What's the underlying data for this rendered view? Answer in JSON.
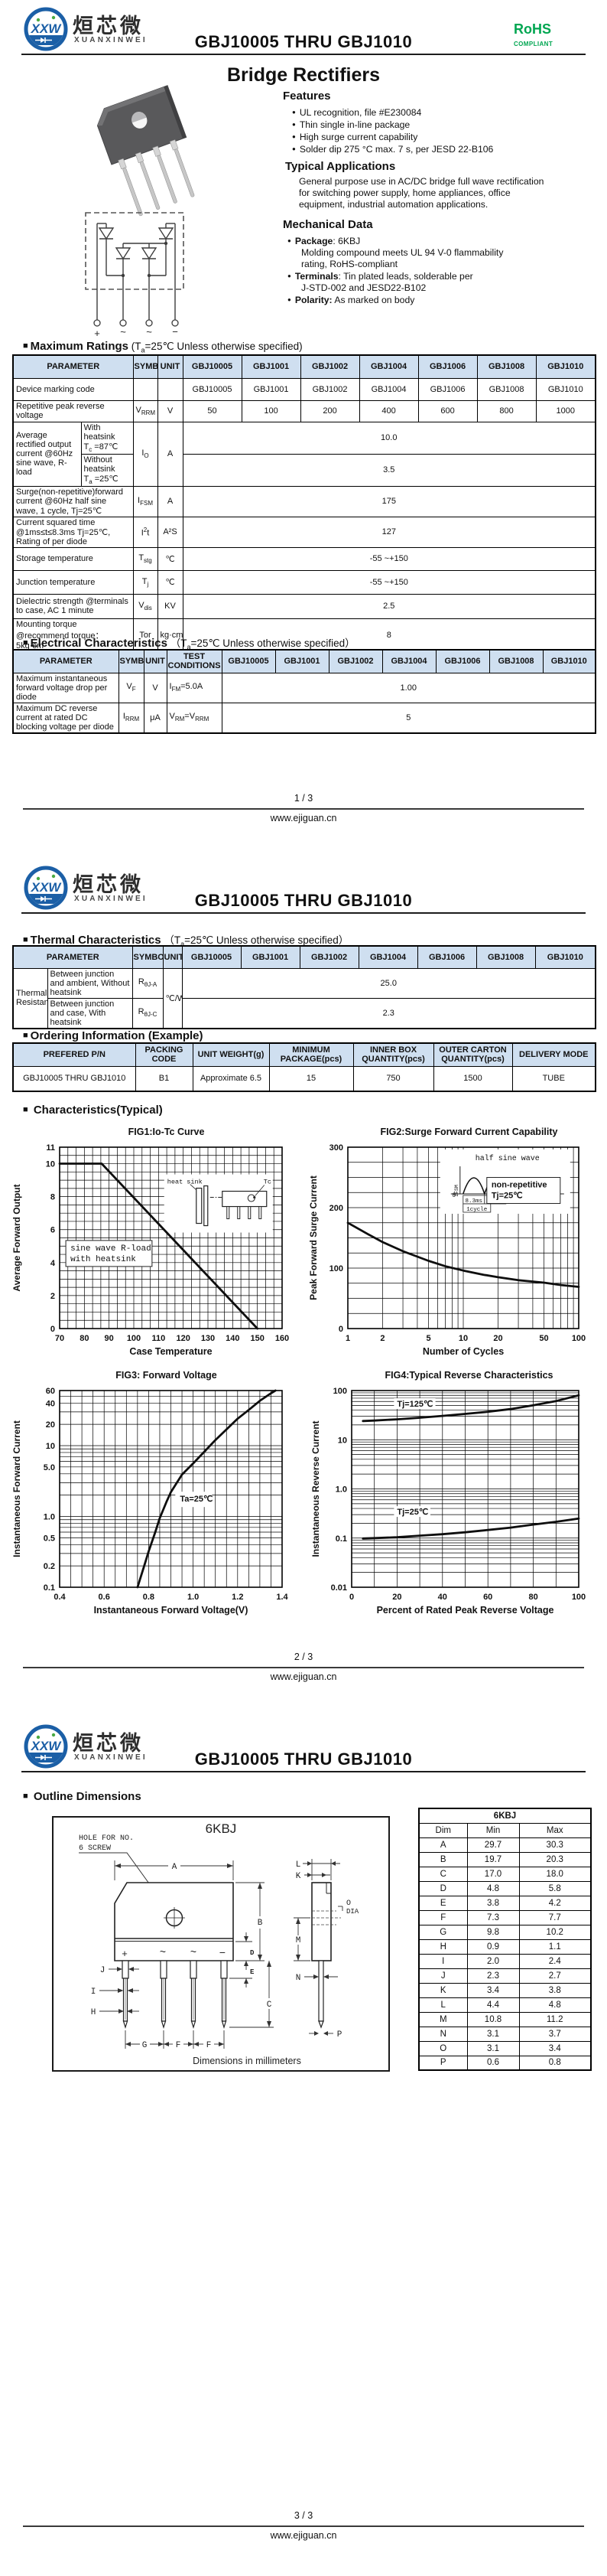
{
  "ui": {
    "square": "■",
    "bullet": "●"
  },
  "brand": {
    "logo_cn": "烜芯微",
    "logo_en": "XUANXINWEI",
    "logo_abbr": "XXW",
    "rohs": "RoHS",
    "rohs_sub": "COMPLIANT"
  },
  "header": {
    "title": "GBJ10005 THRU GBJ1010"
  },
  "footer": {
    "url": "www.ejiguan.cn",
    "pages": [
      "1 / 3",
      "2 / 3",
      "3 / 3"
    ]
  },
  "page1": {
    "product_heading": "Bridge Rectifiers",
    "features": {
      "title": "Features",
      "items": [
        "UL recognition, file #E230084",
        "Thin single in-line package",
        "High surge current capability",
        "Solder dip 275 °C max. 7 s, per JESD 22-B106"
      ]
    },
    "apps": {
      "title": "Typical Applications",
      "lines": [
        "General purpose use in AC/DC bridge full wave rectification",
        "for switching power supply, home appliances, office",
        "equipment, industrial automation applications."
      ]
    },
    "mech": {
      "title": "Mechanical Data",
      "i0b": "Package",
      "i0r": ": 6KBJ",
      "i0c1": "Molding compound meets UL 94 V-0 flammability",
      "i0c2": "rating, RoHS-compliant",
      "i1b": "Terminals",
      "i1r": ": Tin plated leads, solderable  per",
      "i1c1": "J-STD-002 and JESD22-B102",
      "i2b": "Polarity:",
      "i2r": " As marked on body"
    },
    "schematic_terminals": [
      "+",
      "~",
      "~",
      "−"
    ],
    "max_ratings": {
      "heading": {
        "bold": "Maximum Ratings",
        "pre": "(T",
        "sub": "a",
        "post": "=25℃ Unless otherwise specified)"
      },
      "headers": [
        "PARAMETER",
        "SYMBOL",
        "UNIT",
        "GBJ10005",
        "GBJ1001",
        "GBJ1002",
        "GBJ1004",
        "GBJ1006",
        "GBJ1008",
        "GBJ1010"
      ],
      "rows": {
        "marking": {
          "param": "Device marking code",
          "values": [
            "GBJ10005",
            "GBJ1001",
            "GBJ1002",
            "GBJ1004",
            "GBJ1006",
            "GBJ1008",
            "GBJ1010"
          ]
        },
        "vrrm": {
          "param": "Repetitive peak reverse voltage",
          "symb": "V",
          "syms": "RRM",
          "unit": "V",
          "values": [
            "50",
            "100",
            "200",
            "400",
            "600",
            "800",
            "1000"
          ]
        },
        "io": {
          "param": "Average rectified output current  @60Hz sine wave, R-load",
          "h1l1": "With heatsink",
          "h1b": "T",
          "h1s": "c",
          "h1r": " =87℃",
          "v1": "10.0",
          "h2l1": "Without heatsink",
          "h2b": "T",
          "h2s": "a",
          "h2r": " =25℃",
          "v2": "3.5",
          "symb": "I",
          "syms": "O",
          "unit": "A"
        },
        "ifsm": {
          "param": "Surge(non-repetitive)forward current @60Hz half sine wave, 1 cycle, Tj=25℃",
          "symb": "I",
          "syms": "FSM",
          "unit": "A",
          "value": "175"
        },
        "i2t": {
          "param": "Current squared time @1ms≤t≤8.3ms Tj=25℃, Rating of per diode",
          "symb": "I",
          "symp": "2",
          "symb2": "t",
          "unit": "A²S",
          "value": "127"
        },
        "tstg": {
          "param": "Storage temperature",
          "symb": "T",
          "syms": "stg",
          "unit": "℃",
          "value": "-55 ~+150"
        },
        "tj": {
          "param": "Junction temperature",
          "symb": "T",
          "syms": "j",
          "unit": "℃",
          "value": "-55 ~+150"
        },
        "vdis": {
          "param": "Dielectric strength @terminals to case, AC 1 minute",
          "symb": "V",
          "syms": "dis",
          "unit": "KV",
          "value": "2.5"
        },
        "tor": {
          "param": "Mounting torque @recommend torque： 5kg·cm",
          "symb": "Tor",
          "unit": "kg·cm",
          "value": "8"
        }
      }
    },
    "elec": {
      "heading": {
        "bold": "Electrical Characteristics",
        "pre": "（T",
        "sub": "a",
        "post": "=25℃ Unless otherwise specified）"
      },
      "headers": [
        "PARAMETER",
        "SYMBOL",
        "UNIT",
        "TEST CONDITIONS",
        "GBJ10005",
        "GBJ1001",
        "GBJ1002",
        "GBJ1004",
        "GBJ1006",
        "GBJ1008",
        "GBJ1010"
      ],
      "rows": {
        "vf": {
          "param": "Maximum instantaneous forward voltage drop per diode",
          "symb": "V",
          "syms": "F",
          "unit": "V",
          "tb": "I",
          "ts": "FM",
          "tr": "=5.0A",
          "value": "1.00"
        },
        "irrm": {
          "param": "Maximum DC reverse current at rated DC blocking voltage per diode",
          "symb": "I",
          "syms": "RRM",
          "unit": "μA",
          "tb": "V",
          "ts": "RM",
          "tr": "=V",
          "ts2": "RRM",
          "value": "5"
        }
      }
    }
  },
  "page2": {
    "thermal": {
      "heading": {
        "bold": "Thermal Characteristics",
        "pre": "（T",
        "sub": "a",
        "post": "=25℃ Unless otherwise specified）"
      },
      "headers": [
        "PARAMETER",
        "SYMBOL",
        "UNIT",
        "GBJ10005",
        "GBJ1001",
        "GBJ1002",
        "GBJ1004",
        "GBJ1006",
        "GBJ1008",
        "GBJ1010"
      ],
      "group": "Thermal Resistance",
      "r1desc": "Between junction and ambient, Without heatsink",
      "r1b": "R",
      "r1s": "θJ-A",
      "r1v": "25.0",
      "r2desc": "Between junction and case, With heatsink",
      "r2b": "R",
      "r2s": "θJ-C",
      "r2v": "2.3",
      "unit": "℃/W"
    },
    "ordering": {
      "heading": "Ordering Information (Example)",
      "headers": [
        "PREFERED P/N",
        "PACKING CODE",
        "UNIT WEIGHT(g)",
        "MINIMUM PACKAGE(pcs)",
        "INNER BOX QUANTITY(pcs)",
        "OUTER CARTON QUANTITY(pcs)",
        "DELIVERY MODE"
      ],
      "row": [
        "GBJ10005 THRU GBJ1010",
        "B1",
        "Approximate  6.5",
        "15",
        "750",
        "1500",
        "TUBE"
      ]
    },
    "char_heading": "Characteristics(Typical)"
  },
  "page3": {
    "outline_heading": "Outline Dimensions",
    "outline": {
      "title": "6KBJ",
      "note1": "HOLE FOR NO.",
      "note2": "6 SCREW",
      "caption": "Dimensions in millimeters",
      "marks": [
        "+",
        "~",
        "~",
        "−"
      ],
      "labels": [
        "A",
        "B",
        "C",
        "D",
        "E",
        "F",
        "G",
        "H",
        "I",
        "J",
        "K",
        "L",
        "M",
        "N",
        "O",
        "P"
      ],
      "dia": "DIA"
    },
    "dims": {
      "title": "6KBJ",
      "headers": [
        "Dim",
        "Min",
        "Max"
      ],
      "rows": [
        [
          "A",
          "29.7",
          "30.3"
        ],
        [
          "B",
          "19.7",
          "20.3"
        ],
        [
          "C",
          "17.0",
          "18.0"
        ],
        [
          "D",
          "4.8",
          "5.8"
        ],
        [
          "E",
          "3.8",
          "4.2"
        ],
        [
          "F",
          "7.3",
          "7.7"
        ],
        [
          "G",
          "9.8",
          "10.2"
        ],
        [
          "H",
          "0.9",
          "1.1"
        ],
        [
          "I",
          "2.0",
          "2.4"
        ],
        [
          "J",
          "2.3",
          "2.7"
        ],
        [
          "K",
          "3.4",
          "3.8"
        ],
        [
          "L",
          "4.4",
          "4.8"
        ],
        [
          "M",
          "10.8",
          "11.2"
        ],
        [
          "N",
          "3.1",
          "3.7"
        ],
        [
          "O",
          "3.1",
          "3.4"
        ],
        [
          "P",
          "0.6",
          "0.8"
        ]
      ]
    }
  },
  "chart_data": [
    {
      "id": "fig1",
      "type": "line",
      "title": "FIG1:Io-Tc Curve",
      "xlabel": "Case Temperature",
      "ylabel": "Average Forward Output",
      "xscale": "linear",
      "xmin": 70,
      "xmax": 160,
      "xminor": 3.3333,
      "xticks": [
        {
          "v": 70,
          "t": "70"
        },
        {
          "v": 80,
          "t": "80"
        },
        {
          "v": 90,
          "t": "90"
        },
        {
          "v": 100,
          "t": "100"
        },
        {
          "v": 110,
          "t": "110"
        },
        {
          "v": 120,
          "t": "120"
        },
        {
          "v": 130,
          "t": "130"
        },
        {
          "v": 140,
          "t": "140"
        },
        {
          "v": 150,
          "t": "150"
        },
        {
          "v": 160,
          "t": "160"
        }
      ],
      "yscale": "linear",
      "ymin": 0,
      "ymax": 11,
      "yminor": 0.5,
      "yticks": [
        {
          "v": 11,
          "t": "11"
        },
        {
          "v": 10,
          "t": "10"
        },
        {
          "v": 8,
          "t": "8"
        },
        {
          "v": 6,
          "t": "6"
        },
        {
          "v": 4,
          "t": "4"
        },
        {
          "v": 2,
          "t": "2"
        },
        {
          "v": 0,
          "t": "0"
        }
      ],
      "series": [
        {
          "name": "Io vs Tc",
          "points": [
            [
              70,
              10
            ],
            [
              87,
              10
            ],
            [
              150,
              0
            ]
          ]
        }
      ],
      "annotations": [
        {
          "x": 72.5,
          "y": 3.95,
          "lines": [
            "sine wave R-load",
            "with heatsink"
          ],
          "box": true,
          "mono": true
        }
      ],
      "inset": {
        "kind": "heatsink",
        "labels": [
          "heat sink",
          "Tc"
        ]
      }
    },
    {
      "id": "fig2",
      "type": "line",
      "title": "FIG2:Surge Forward Current Capability",
      "xlabel": "Number of Cycles",
      "ylabel": "Peak Forward Surge Current",
      "xscale": "log",
      "xmin": 1,
      "xmax": 100,
      "xticks": [
        {
          "v": 1,
          "t": "1"
        },
        {
          "v": 2,
          "t": "2"
        },
        {
          "v": 5,
          "t": "5"
        },
        {
          "v": 10,
          "t": "10"
        },
        {
          "v": 20,
          "t": "20"
        },
        {
          "v": 50,
          "t": "50"
        },
        {
          "v": 100,
          "t": "100"
        }
      ],
      "yscale": "linear",
      "ymin": 0,
      "ymax": 300,
      "yminor": 25,
      "yticks": [
        {
          "v": 0,
          "t": "0"
        },
        {
          "v": 100,
          "t": "100"
        },
        {
          "v": 200,
          "t": "200"
        },
        {
          "v": 300,
          "t": "300"
        }
      ],
      "series": [
        {
          "name": "IFSM",
          "points": [
            [
              1,
              175
            ],
            [
              1.5,
              156
            ],
            [
              2,
              143
            ],
            [
              3,
              128
            ],
            [
              4,
              119
            ],
            [
              5,
              112
            ],
            [
              7,
              103
            ],
            [
              10,
              96
            ],
            [
              15,
              89
            ],
            [
              20,
              85
            ],
            [
              30,
              80
            ],
            [
              50,
              76
            ],
            [
              70,
              72
            ],
            [
              100,
              69
            ]
          ]
        }
      ],
      "annotations": [
        {
          "x": 16,
          "y": 212,
          "lines": [
            "non-repetitive",
            "Tj=25℃"
          ],
          "box": true,
          "mono": false
        }
      ],
      "inset": {
        "kind": "halfsine",
        "labels": [
          "half sine wave",
          "IFSM",
          "8.3ms",
          "8.3ms",
          "1cycle",
          "0"
        ]
      }
    },
    {
      "id": "fig3",
      "type": "line",
      "title": "FIG3: Forward Voltage",
      "xlabel": "Instantaneous Forward Voltage(V)",
      "ylabel": "Instantaneous  Forward Current",
      "xscale": "linear",
      "xmin": 0.4,
      "xmax": 1.4,
      "xminor": 0.05,
      "xticks": [
        {
          "v": 0.4,
          "t": "0.4"
        },
        {
          "v": 0.6,
          "t": "0.6"
        },
        {
          "v": 0.8,
          "t": "0.8"
        },
        {
          "v": 1.0,
          "t": "1.0"
        },
        {
          "v": 1.2,
          "t": "1.2"
        },
        {
          "v": 1.4,
          "t": "1.4"
        }
      ],
      "yscale": "log",
      "ymin": 0.1,
      "ymax": 60,
      "yticks": [
        {
          "v": 60,
          "t": "60"
        },
        {
          "v": 40,
          "t": "40"
        },
        {
          "v": 20,
          "t": "20"
        },
        {
          "v": 10,
          "t": "10"
        },
        {
          "v": 5,
          "t": "5.0"
        },
        {
          "v": 1,
          "t": "1.0"
        },
        {
          "v": 0.5,
          "t": "0.5"
        },
        {
          "v": 0.2,
          "t": "0.2"
        },
        {
          "v": 0.1,
          "t": "0.1"
        }
      ],
      "series": [
        {
          "name": "VF",
          "points": [
            [
              0.75,
              0.1
            ],
            [
              0.78,
              0.2
            ],
            [
              0.8,
              0.32
            ],
            [
              0.83,
              0.6
            ],
            [
              0.85,
              0.95
            ],
            [
              0.88,
              1.6
            ],
            [
              0.9,
              2.2
            ],
            [
              0.95,
              3.9
            ],
            [
              1.0,
              5.6
            ],
            [
              1.05,
              8.2
            ],
            [
              1.1,
              12
            ],
            [
              1.15,
              17
            ],
            [
              1.2,
              24
            ],
            [
              1.25,
              32
            ],
            [
              1.3,
              43
            ],
            [
              1.35,
              55
            ],
            [
              1.37,
              60
            ]
          ]
        }
      ],
      "annotations": [
        {
          "x": 0.92,
          "y": 1.5,
          "lines": [
            "Ta=25℃"
          ],
          "box": false,
          "mono": false
        }
      ]
    },
    {
      "id": "fig4",
      "type": "line",
      "title": "FIG4:Typical Reverse Characteristics",
      "xlabel": "Percent of Rated Peak Reverse Voltage",
      "ylabel": "Instantaneous Reverse Current",
      "xscale": "linear",
      "xmin": 0,
      "xmax": 100,
      "xminor": 10,
      "xticks": [
        {
          "v": 0,
          "t": "0"
        },
        {
          "v": 20,
          "t": "20"
        },
        {
          "v": 40,
          "t": "40"
        },
        {
          "v": 60,
          "t": "60"
        },
        {
          "v": 80,
          "t": "80"
        },
        {
          "v": 100,
          "t": "100"
        }
      ],
      "yscale": "log",
      "ymin": 0.01,
      "ymax": 100,
      "yticks": [
        {
          "v": 100,
          "t": "100"
        },
        {
          "v": 10,
          "t": "10"
        },
        {
          "v": 1,
          "t": "1.0"
        },
        {
          "v": 0.1,
          "t": "0.1"
        },
        {
          "v": 0.01,
          "t": "0.01"
        }
      ],
      "series": [
        {
          "name": "Tj=125C",
          "points": [
            [
              5,
              24
            ],
            [
              10,
              24.5
            ],
            [
              20,
              26
            ],
            [
              30,
              28
            ],
            [
              40,
              30.5
            ],
            [
              50,
              33.5
            ],
            [
              60,
              37
            ],
            [
              70,
              42
            ],
            [
              80,
              50
            ],
            [
              90,
              61
            ],
            [
              100,
              80
            ]
          ],
          "label": {
            "x": 20,
            "y": 47,
            "t": "Tj=125℃"
          }
        },
        {
          "name": "Tj=25C",
          "points": [
            [
              5,
              0.098
            ],
            [
              10,
              0.1
            ],
            [
              20,
              0.104
            ],
            [
              30,
              0.112
            ],
            [
              40,
              0.12
            ],
            [
              50,
              0.131
            ],
            [
              60,
              0.146
            ],
            [
              70,
              0.163
            ],
            [
              80,
              0.188
            ],
            [
              90,
              0.214
            ],
            [
              100,
              0.25
            ]
          ],
          "label": {
            "x": 20,
            "y": 0.3,
            "t": "Tj=25℃"
          }
        }
      ]
    }
  ]
}
